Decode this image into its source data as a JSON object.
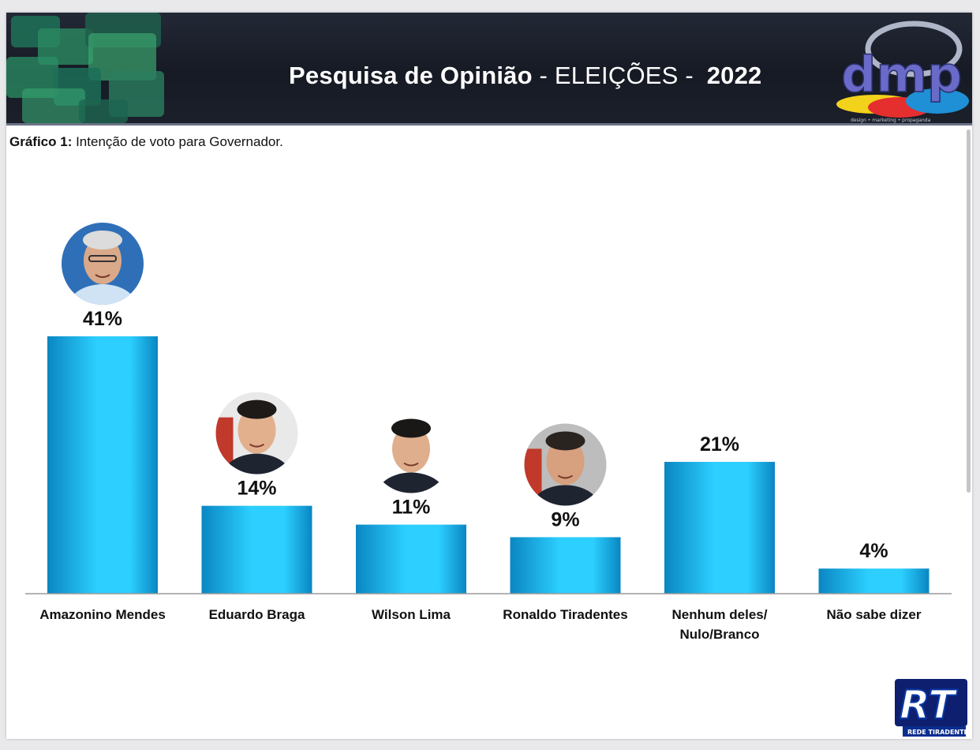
{
  "header": {
    "title_part1": "Pesquisa de Opinião",
    "title_part2": " - ELEIÇÕES - ",
    "year": "2022",
    "logo_text": "dmp",
    "logo_tagline": "design • marketing • propaganda"
  },
  "caption": {
    "label": "Gráfico 1:",
    "text": " Intenção de voto para Governador."
  },
  "footer_logo": {
    "text": "RT",
    "tagline": "REDE TIRADENTES"
  },
  "colors": {
    "bar_light": "#2ccfff",
    "bar_dark": "#0a86c2",
    "header_bg": "#1b202b"
  },
  "chart_data": {
    "type": "bar",
    "categories": [
      "Amazonino Mendes",
      "Eduardo Braga",
      "Wilson Lima",
      "Ronaldo Tiradentes",
      "Nenhum deles/\nNulo/Branco",
      "Não sabe dizer"
    ],
    "values": [
      41,
      14,
      11,
      9,
      21,
      4
    ],
    "data_labels": [
      "41%",
      "14%",
      "11%",
      "9%",
      "21%",
      "4%"
    ],
    "photos": [
      true,
      true,
      true,
      true,
      false,
      false
    ],
    "title": "",
    "xlabel": "",
    "ylabel": "",
    "ylim": [
      0,
      41
    ],
    "grid": false
  }
}
